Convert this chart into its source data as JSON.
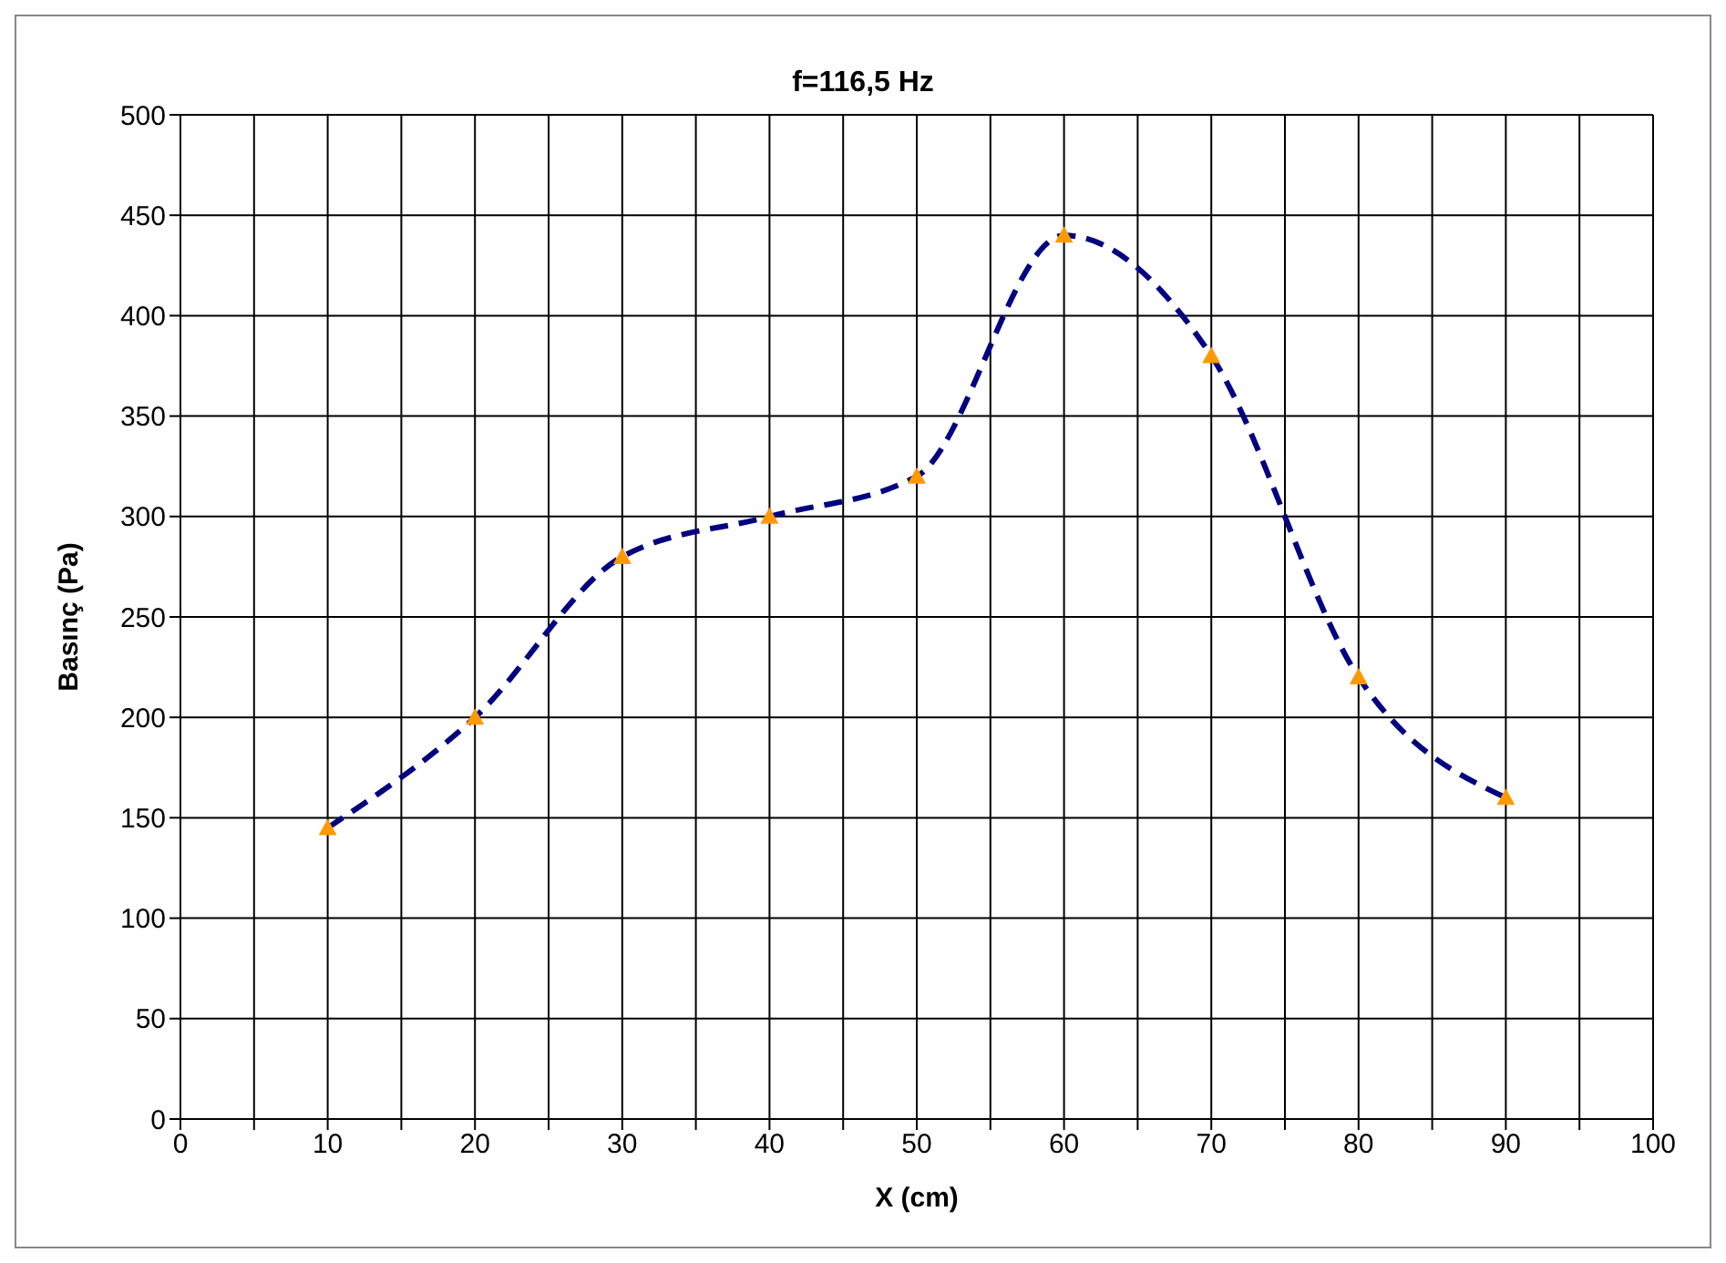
{
  "chart_data": {
    "type": "line",
    "title": "f=116,5 Hz",
    "xlabel": "X (cm)",
    "ylabel": "Basınç (Pa)",
    "x": [
      10,
      20,
      30,
      40,
      50,
      60,
      70,
      80,
      90
    ],
    "series": [
      {
        "color": "#000080",
        "line_style": "dashed",
        "marker": "none",
        "values": [
          145,
          200,
          280,
          300,
          320,
          440,
          380,
          220,
          160
        ]
      },
      {
        "type": "scatter",
        "color": "#ff9900",
        "marker": "triangle",
        "values": [
          145,
          200,
          280,
          300,
          320,
          440,
          380,
          220,
          160
        ]
      }
    ],
    "xlim": [
      0,
      100
    ],
    "xticks": [
      0,
      {
        "value": 5,
        "label": null
      },
      10,
      {
        "value": 15,
        "label": null
      },
      20,
      {
        "value": 25,
        "label": null
      },
      30,
      {
        "value": 35,
        "label": null
      },
      40,
      {
        "value": 45,
        "label": null
      },
      50,
      {
        "value": 55,
        "label": null
      },
      60,
      {
        "value": 65,
        "label": null
      },
      70,
      {
        "value": 75,
        "label": null
      },
      80,
      {
        "value": 85,
        "label": null
      },
      90,
      {
        "value": 95,
        "label": null
      },
      100
    ],
    "ylim": [
      0,
      500
    ],
    "yticks": [
      0,
      50,
      100,
      150,
      200,
      250,
      300,
      350,
      400,
      450,
      500
    ],
    "grid": true,
    "legend": false
  }
}
